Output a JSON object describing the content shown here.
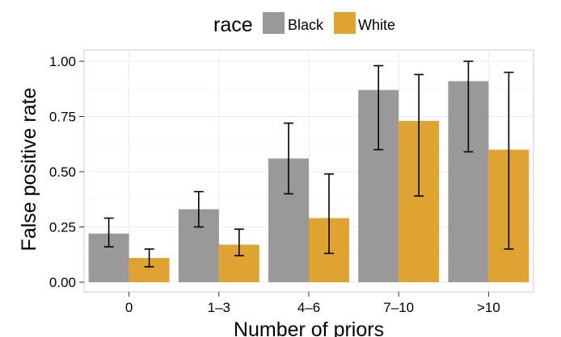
{
  "chart_data": {
    "type": "bar",
    "categories": [
      "0",
      "1–3",
      "4–6",
      "7–10",
      ">10"
    ],
    "series": [
      {
        "name": "Black",
        "values": [
          0.22,
          0.33,
          0.56,
          0.87,
          0.91
        ],
        "error_low": [
          0.16,
          0.25,
          0.4,
          0.6,
          0.59
        ],
        "error_high": [
          0.29,
          0.41,
          0.72,
          0.98,
          1.0
        ],
        "color": "#999999"
      },
      {
        "name": "White",
        "values": [
          0.11,
          0.17,
          0.29,
          0.73,
          0.6
        ],
        "error_low": [
          0.07,
          0.12,
          0.13,
          0.39,
          0.15
        ],
        "error_high": [
          0.15,
          0.24,
          0.49,
          0.94,
          0.95
        ],
        "color": "#E0A331"
      }
    ],
    "xlabel": "Number of priors",
    "ylabel": "False positive rate",
    "ylim": [
      0,
      1.03
    ],
    "yticks": [
      0.0,
      0.25,
      0.5,
      0.75,
      1.0
    ],
    "ytick_labels": [
      "0.00",
      "0.25",
      "0.50",
      "0.75",
      "1.00"
    ],
    "grid": true,
    "legend": {
      "title": "race",
      "placement": "top",
      "entries": [
        "Black",
        "White"
      ]
    }
  }
}
